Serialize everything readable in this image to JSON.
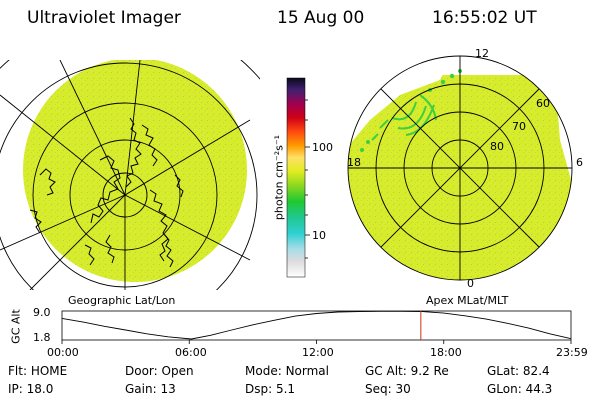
{
  "header": {
    "instrument": "Ultraviolet Imager",
    "date": "15 Aug 00",
    "time": "16:55:02 UT"
  },
  "colorbar": {
    "unit_label": "photon cm⁻²s⁻¹",
    "ticks": [
      "100",
      "10"
    ]
  },
  "left_panel": {
    "caption": "Geographic Lat/Lon"
  },
  "right_panel": {
    "caption": "Apex MLat/MLT",
    "mlt_labels": {
      "top": "12",
      "left": "18",
      "right": "6",
      "bottom": "0"
    },
    "lat_labels": [
      "60",
      "70",
      "80"
    ]
  },
  "colors": {
    "fill": "#d8ec2c",
    "aurora": "#3ecf3e",
    "line": "#000000",
    "marker": "#d03010"
  },
  "chart_data": {
    "type": "line",
    "title": "",
    "ylabel": "GC Alt",
    "ylim": [
      1.8,
      9.0
    ],
    "yticks": [
      "9.0",
      "1.8"
    ],
    "xticks": [
      "00:00",
      "06:00",
      "12:00",
      "18:00",
      "23:59"
    ],
    "x_hours": [
      0,
      1,
      2,
      3,
      4,
      5,
      6.1,
      7,
      8,
      9,
      10,
      11,
      12,
      13,
      14,
      15,
      16,
      17,
      18,
      19,
      20,
      21,
      22,
      23,
      23.98
    ],
    "altitude": [
      7.3,
      6.3,
      5.2,
      4.2,
      3.2,
      2.4,
      1.8,
      2.8,
      4.2,
      5.6,
      6.8,
      7.9,
      8.6,
      9.0,
      9.1,
      9.2,
      9.2,
      9.1,
      8.7,
      8.0,
      7.1,
      6.0,
      4.7,
      3.2,
      1.9
    ],
    "current_time_hours": 16.92
  },
  "info": {
    "row1": [
      {
        "label": "Flt:",
        "value": "HOME"
      },
      {
        "label": "Door:",
        "value": "Open"
      },
      {
        "label": "Mode:",
        "value": "Normal"
      },
      {
        "label": "GC Alt:",
        "value": "9.2 Re"
      },
      {
        "label": "GLat:",
        "value": "82.4"
      }
    ],
    "row2": [
      {
        "label": "IP:",
        "value": "18.0"
      },
      {
        "label": "Gain:",
        "value": "13"
      },
      {
        "label": "Dsp:",
        "value": "5.1"
      },
      {
        "label": "Seq:",
        "value": "30"
      },
      {
        "label": "GLon:",
        "value": "44.3"
      }
    ]
  }
}
